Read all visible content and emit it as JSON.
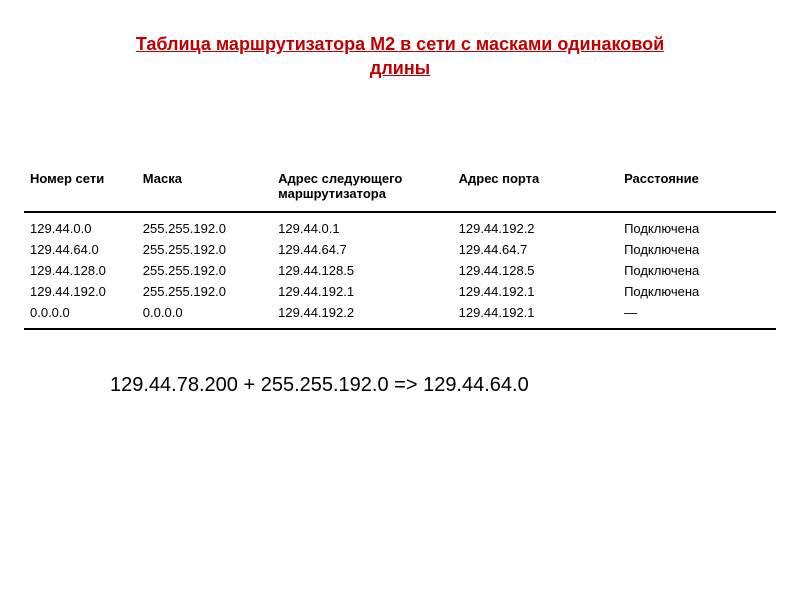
{
  "title_color": "#c00000",
  "title_line1": "Таблица маршрутизатора М2 в сети с масками одинаковой",
  "title_line2": "длины",
  "headers": {
    "net": "Номер сети",
    "mask": "Маска",
    "next": "Адрес следующего маршрутизатора",
    "port": "Адрес порта",
    "dist": "Расстояние"
  },
  "rows": [
    {
      "net": "129.44.0.0",
      "mask": "255.255.192.0",
      "next": "129.44.0.1",
      "port": "129.44.192.2",
      "dist": "Подключена"
    },
    {
      "net": "129.44.64.0",
      "mask": "255.255.192.0",
      "next": "129.44.64.7",
      "port": "129.44.64.7",
      "dist": "Подключена"
    },
    {
      "net": "129.44.128.0",
      "mask": "255.255.192.0",
      "next": "129.44.128.5",
      "port": "129.44.128.5",
      "dist": "Подключена"
    },
    {
      "net": "129.44.192.0",
      "mask": "255.255.192.0",
      "next": "129.44.192.1",
      "port": "129.44.192.1",
      "dist": "Подключена"
    },
    {
      "net": "0.0.0.0",
      "mask": "0.0.0.0",
      "next": "129.44.192.2",
      "port": "129.44.192.1",
      "dist": "—"
    }
  ],
  "calc_text": "129.44.78.200 + 255.255.192.0 => 129.44.64.0",
  "style": {
    "background_color": "#ffffff",
    "text_color": "#000000",
    "border_color": "#000000",
    "title_fontsize": 18,
    "header_fontsize": 13,
    "body_fontsize": 13,
    "calc_fontsize": 20,
    "col_widths_pct": [
      15,
      18,
      24,
      22,
      21
    ]
  }
}
